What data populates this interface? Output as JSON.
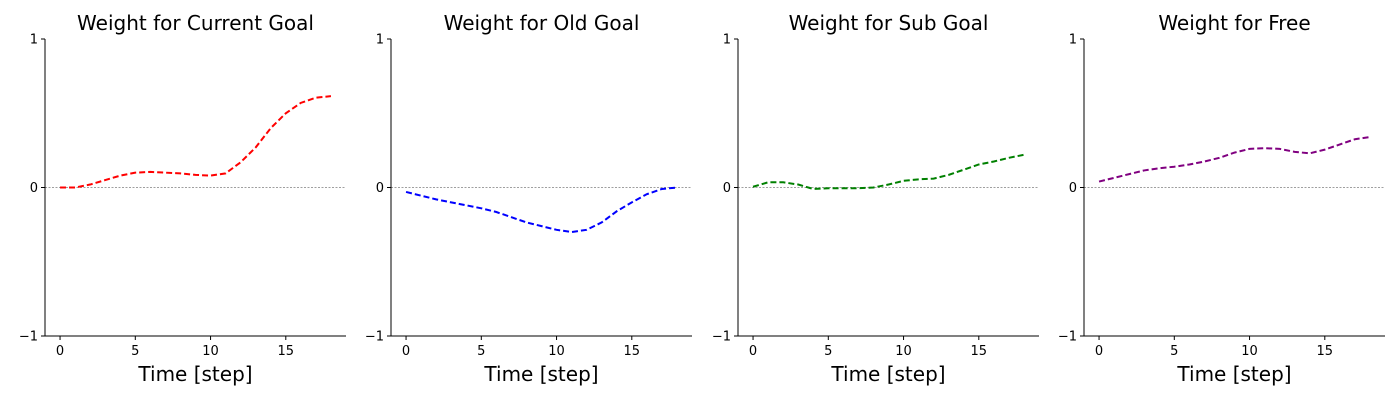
{
  "chart_data": [
    {
      "type": "line",
      "title": "Weight for Current Goal",
      "xlabel": "Time [step]",
      "ylabel": "",
      "xlim": [
        -1,
        19
      ],
      "ylim": [
        -1,
        1
      ],
      "xticks": [
        0,
        5,
        10,
        15
      ],
      "yticks": [
        -1,
        0,
        1
      ],
      "zero_line": true,
      "grid": false,
      "series": [
        {
          "color": "#ff0000",
          "style": "dashed",
          "x": [
            0,
            1,
            2,
            3,
            4,
            5,
            6,
            7,
            8,
            9,
            10,
            11,
            12,
            13,
            14,
            15,
            16,
            17,
            18
          ],
          "y": [
            0.0,
            0.0,
            0.02,
            0.05,
            0.08,
            0.1,
            0.105,
            0.1,
            0.095,
            0.085,
            0.08,
            0.095,
            0.17,
            0.27,
            0.4,
            0.5,
            0.57,
            0.605,
            0.615
          ]
        }
      ]
    },
    {
      "type": "line",
      "title": "Weight for Old Goal",
      "xlabel": "Time [step]",
      "ylabel": "",
      "xlim": [
        -1,
        19
      ],
      "ylim": [
        -1,
        1
      ],
      "xticks": [
        0,
        5,
        10,
        15
      ],
      "yticks": [
        -1,
        0,
        1
      ],
      "zero_line": true,
      "grid": false,
      "series": [
        {
          "color": "#0000ff",
          "style": "dashed",
          "x": [
            0,
            1,
            2,
            3,
            4,
            5,
            6,
            7,
            8,
            9,
            10,
            11,
            12,
            13,
            14,
            15,
            16,
            17,
            18
          ],
          "y": [
            -0.03,
            -0.055,
            -0.08,
            -0.1,
            -0.12,
            -0.14,
            -0.165,
            -0.2,
            -0.235,
            -0.26,
            -0.285,
            -0.3,
            -0.285,
            -0.235,
            -0.16,
            -0.1,
            -0.045,
            -0.01,
            0.0
          ]
        }
      ]
    },
    {
      "type": "line",
      "title": "Weight for Sub Goal",
      "xlabel": "Time [step]",
      "ylabel": "",
      "xlim": [
        -1,
        19
      ],
      "ylim": [
        -1,
        1
      ],
      "xticks": [
        0,
        5,
        10,
        15
      ],
      "yticks": [
        -1,
        0,
        1
      ],
      "zero_line": true,
      "grid": false,
      "series": [
        {
          "color": "#008000",
          "style": "dashed",
          "x": [
            0,
            1,
            2,
            3,
            4,
            5,
            6,
            7,
            8,
            9,
            10,
            11,
            12,
            13,
            14,
            15,
            16,
            17,
            18
          ],
          "y": [
            0.005,
            0.035,
            0.035,
            0.02,
            -0.01,
            -0.005,
            -0.005,
            -0.005,
            0.0,
            0.02,
            0.045,
            0.055,
            0.06,
            0.085,
            0.12,
            0.155,
            0.175,
            0.2,
            0.22
          ]
        }
      ]
    },
    {
      "type": "line",
      "title": "Weight for Free",
      "xlabel": "Time [step]",
      "ylabel": "",
      "xlim": [
        -1,
        19
      ],
      "ylim": [
        -1,
        1
      ],
      "xticks": [
        0,
        5,
        10,
        15
      ],
      "yticks": [
        -1,
        0,
        1
      ],
      "zero_line": true,
      "grid": false,
      "series": [
        {
          "color": "#800080",
          "style": "dashed",
          "x": [
            0,
            1,
            2,
            3,
            4,
            5,
            6,
            7,
            8,
            9,
            10,
            11,
            12,
            13,
            14,
            15,
            16,
            17,
            18
          ],
          "y": [
            0.04,
            0.065,
            0.09,
            0.115,
            0.13,
            0.14,
            0.155,
            0.175,
            0.2,
            0.235,
            0.26,
            0.265,
            0.26,
            0.24,
            0.23,
            0.255,
            0.29,
            0.325,
            0.34
          ]
        }
      ]
    }
  ]
}
